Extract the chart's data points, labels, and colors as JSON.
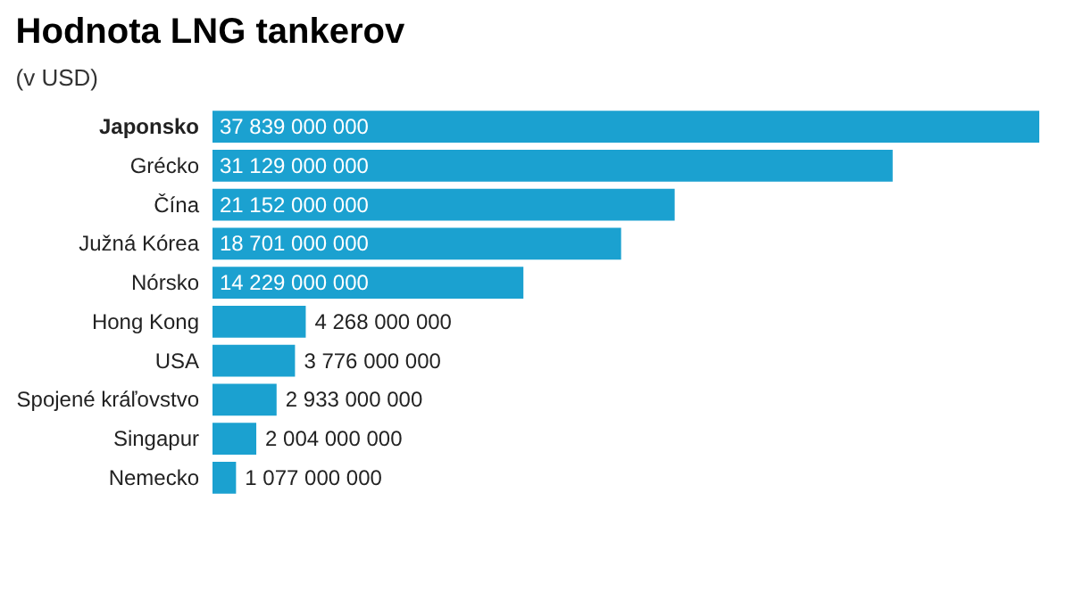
{
  "chart_data": {
    "type": "bar",
    "orientation": "horizontal",
    "title": "Hodnota LNG tankerov",
    "subtitle": "(v USD)",
    "categories": [
      "Japonsko",
      "Grécko",
      "Čína",
      "Južná Kórea",
      "Nórsko",
      "Hong Kong",
      "USA",
      "Spojené kráľovstvo",
      "Singapur",
      "Nemecko"
    ],
    "values": [
      37839000000,
      31129000000,
      21152000000,
      18701000000,
      14229000000,
      4268000000,
      3776000000,
      2933000000,
      2004000000,
      1077000000
    ],
    "value_labels": [
      "37 839 000 000",
      "31 129 000 000",
      "21 152 000 000",
      "18 701 000 000",
      "14 229 000 000",
      "4 268 000 000",
      "3 776 000 000",
      "2 933 000 000",
      "2 004 000 000",
      "1 077 000 000"
    ],
    "color": "#1ba1d0",
    "grid": false
  }
}
